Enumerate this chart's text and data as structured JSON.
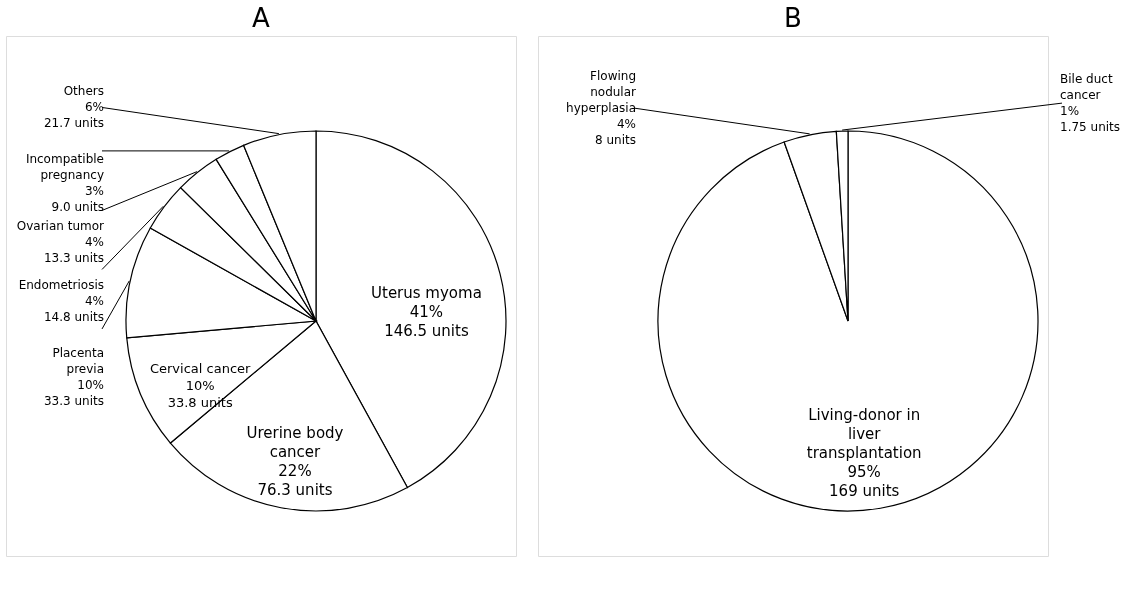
{
  "chart_data": [
    {
      "type": "pie",
      "title": "A",
      "categories": [
        "Uterus myoma",
        "Urerine body cancer",
        "Cervical cancer",
        "Placenta previa",
        "Endometriosis",
        "Ovarian tumor",
        "Incompatible pregnancy",
        "Others"
      ],
      "values": [
        146.5,
        76.3,
        33.8,
        33.3,
        14.8,
        13.3,
        9.0,
        21.7
      ],
      "value_labels": [
        "41%\n146.5 units",
        "22%\n76.3 units",
        "10%\n33.8 units",
        "10%\n33.3 units",
        "4%\n14.8 units",
        "4%\n13.3 units",
        "3%\n9.0 units",
        "6%\n21.7 units"
      ],
      "colors": [
        "#ffffff",
        "#ffffff",
        "#ffffff",
        "#ffffff",
        "#ffffff",
        "#ffffff",
        "#ffffff",
        "#ffffff"
      ]
    },
    {
      "type": "pie",
      "title": "B",
      "categories": [
        "Living-donor in liver transplantation",
        "Flowing nodular hyperplasia",
        "Bile duct cancer"
      ],
      "values": [
        169,
        8,
        1.75
      ],
      "value_labels": [
        "95%\n169 units",
        "4%\n8 units",
        "1%\n1.75 units"
      ],
      "colors": [
        "#ffffff",
        "#ffffff",
        "#ffffff"
      ]
    }
  ]
}
